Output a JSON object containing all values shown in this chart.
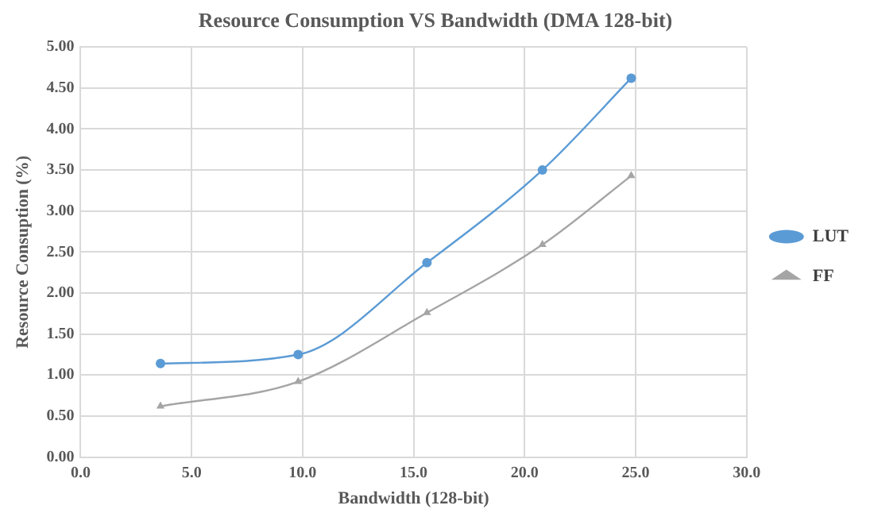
{
  "chart_data": {
    "type": "line",
    "title": "Resource Consumption VS Bandwidth (DMA 128-bit)",
    "xlabel": "Bandwidth (128-bit)",
    "ylabel": "Resource Consuption (%)",
    "x": [
      3.6,
      9.8,
      15.6,
      20.8,
      24.8
    ],
    "series": [
      {
        "name": "LUT",
        "color": "#5b9bd5",
        "marker": "circle",
        "values": [
          1.14,
          1.25,
          2.37,
          3.5,
          4.62
        ]
      },
      {
        "name": "FF",
        "color": "#a5a5a5",
        "marker": "triangle",
        "values": [
          0.62,
          0.92,
          1.76,
          2.59,
          3.43
        ]
      }
    ],
    "xlim": [
      0,
      30
    ],
    "xticks": [
      {
        "value": 0,
        "label": "0.0"
      },
      {
        "value": 5,
        "label": "5.0"
      },
      {
        "value": 10,
        "label": "10.0"
      },
      {
        "value": 15,
        "label": "15.0"
      },
      {
        "value": 20,
        "label": "20.0"
      },
      {
        "value": 25,
        "label": "25.0"
      },
      {
        "value": 30,
        "label": "30.0"
      }
    ],
    "ylim": [
      0,
      5
    ],
    "yticks": [
      {
        "value": 0,
        "label": "0.00"
      },
      {
        "value": 0.5,
        "label": "0.50"
      },
      {
        "value": 1,
        "label": "1.00"
      },
      {
        "value": 1.5,
        "label": "1.50"
      },
      {
        "value": 2,
        "label": "2.00"
      },
      {
        "value": 2.5,
        "label": "2.50"
      },
      {
        "value": 3,
        "label": "3.00"
      },
      {
        "value": 3.5,
        "label": "3.50"
      },
      {
        "value": 4,
        "label": "4.00"
      },
      {
        "value": 4.5,
        "label": "4.50"
      },
      {
        "value": 5,
        "label": "5.00"
      }
    ],
    "grid": true,
    "legend": "right",
    "line_style": "solid"
  }
}
